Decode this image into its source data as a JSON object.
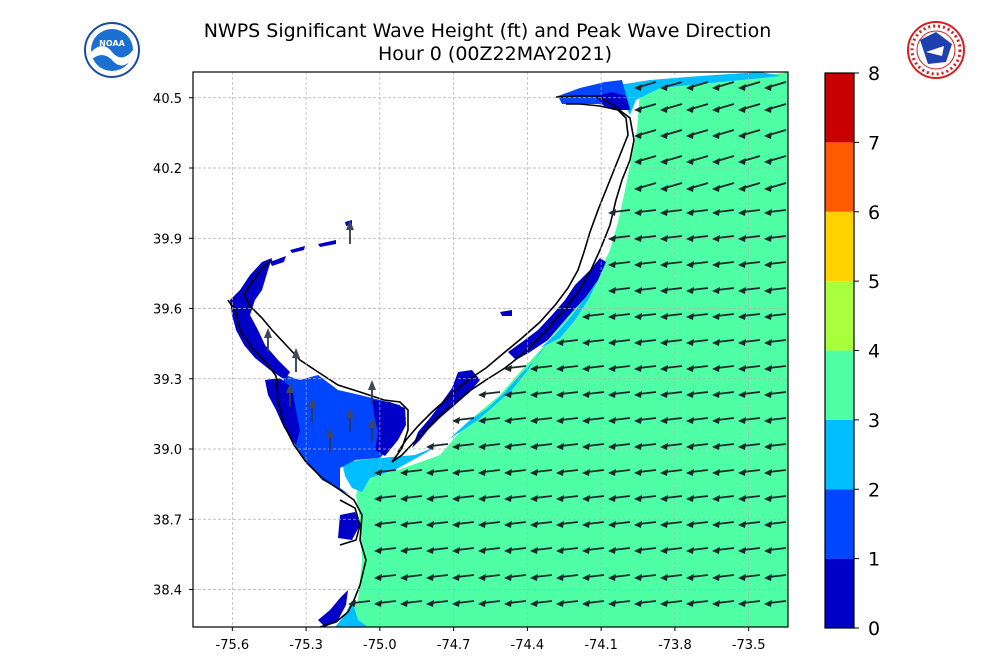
{
  "title_line1": "NWPS Significant Wave Height (ft) and Peak Wave Direction",
  "title_line2": "Hour 0 (00Z22MAY2021)",
  "logos": {
    "left": "NOAA",
    "right": "NATIONAL WEATHER SERVICE"
  },
  "colors": {
    "land": "#ffffff",
    "coast": "#000000",
    "grid": "#b0b0b0",
    "arrow": "#1a2a2a"
  },
  "map_data": {
    "lon_ticks": [
      "-75.6",
      "-75.3",
      "-75.0",
      "-74.7",
      "-74.4",
      "-74.1",
      "-73.8",
      "-73.5"
    ],
    "lat_ticks": [
      "40.5",
      "40.2",
      "39.9",
      "39.6",
      "39.3",
      "39.0",
      "38.7",
      "38.4"
    ],
    "lon_values": [
      -75.6,
      -75.3,
      -75.0,
      -74.7,
      -74.4,
      -74.1,
      -73.8,
      -73.5
    ],
    "lat_values": [
      40.5,
      40.2,
      39.9,
      39.6,
      39.3,
      39.0,
      38.7,
      38.4
    ],
    "lon_range": [
      -75.76,
      -73.34
    ],
    "lat_range": [
      38.24,
      40.61
    ],
    "grid": true,
    "dominant_wave_height_ft": "3-4",
    "dominant_peak_wave_direction": "from east (arrows pointing west)"
  },
  "colorbar": {
    "tick_labels": [
      "0",
      "1",
      "2",
      "3",
      "4",
      "5",
      "6",
      "7",
      "8"
    ],
    "bins": [
      {
        "range": [
          0,
          1
        ],
        "color": "#0000c8"
      },
      {
        "range": [
          1,
          2
        ],
        "color": "#0046ff"
      },
      {
        "range": [
          2,
          3
        ],
        "color": "#00beff"
      },
      {
        "range": [
          3,
          4
        ],
        "color": "#4effa6"
      },
      {
        "range": [
          4,
          5
        ],
        "color": "#aaff3c"
      },
      {
        "range": [
          5,
          6
        ],
        "color": "#ffd200"
      },
      {
        "range": [
          6,
          7
        ],
        "color": "#ff5a00"
      },
      {
        "range": [
          7,
          8
        ],
        "color": "#c80000"
      }
    ]
  }
}
